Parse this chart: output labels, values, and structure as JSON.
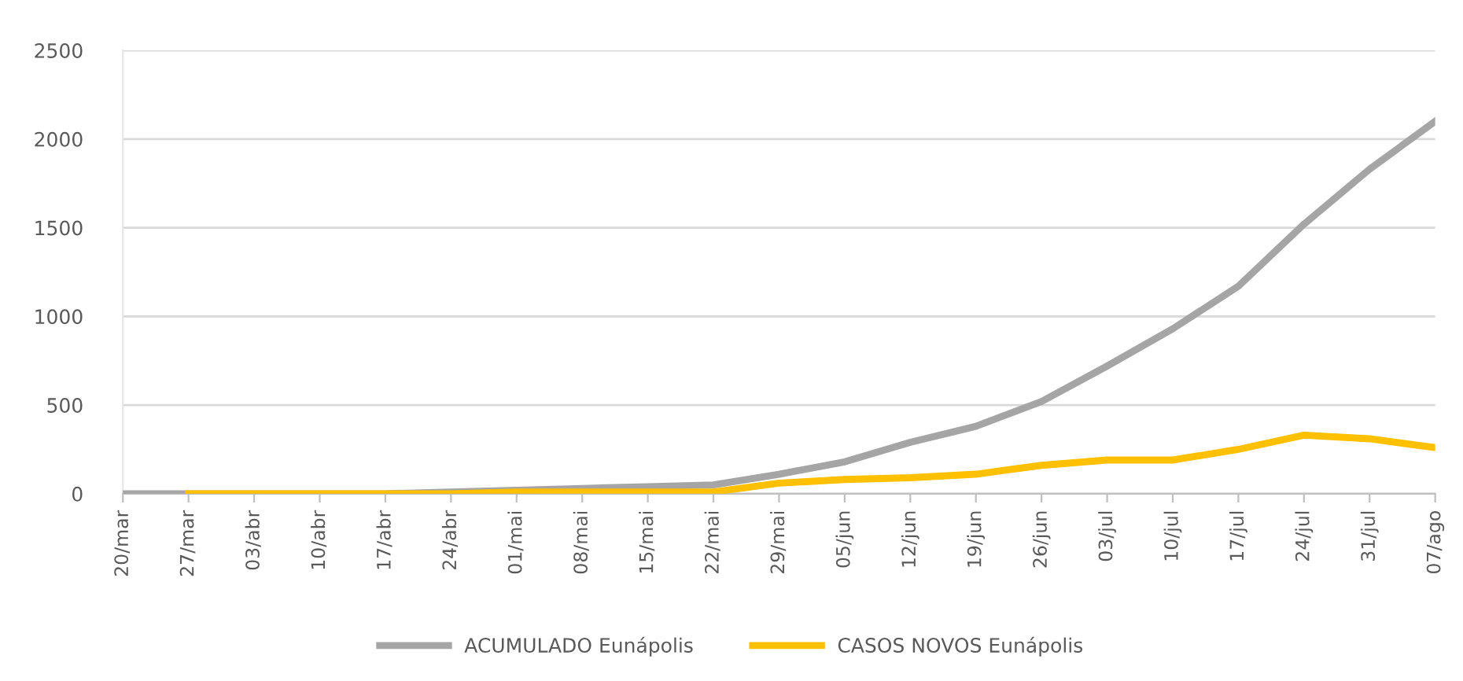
{
  "chart_data": {
    "type": "line",
    "categories": [
      "20/mar",
      "27/mar",
      "03/abr",
      "10/abr",
      "17/abr",
      "24/abr",
      "01/mai",
      "08/mai",
      "15/mai",
      "22/mai",
      "29/mai",
      "05/jun",
      "12/jun",
      "19/jun",
      "26/jun",
      "03/jul",
      "10/jul",
      "17/jul",
      "24/jul",
      "31/jul",
      "07/ago"
    ],
    "series": [
      {
        "name": "ACUMULADO Eunápolis",
        "color": "#a5a5a5",
        "values": [
          0,
          0,
          0,
          0,
          0,
          10,
          20,
          30,
          40,
          50,
          110,
          180,
          290,
          380,
          520,
          720,
          930,
          1170,
          1520,
          1830,
          2100
        ]
      },
      {
        "name": "CASOS NOVOS Eunápolis",
        "color": "#ffc000",
        "values": [
          null,
          0,
          0,
          0,
          0,
          0,
          10,
          10,
          10,
          10,
          60,
          80,
          90,
          110,
          160,
          190,
          190,
          250,
          330,
          310,
          260
        ]
      }
    ],
    "ylim": [
      0,
      2500
    ],
    "yticks": [
      0,
      500,
      1000,
      1500,
      2000,
      2500
    ],
    "grid": "y",
    "legend": "bottom",
    "marker": "none",
    "line_style": "solid"
  }
}
